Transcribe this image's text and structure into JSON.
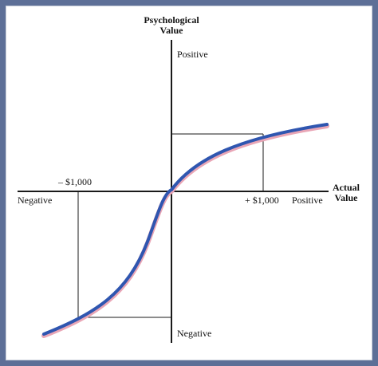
{
  "diagram": {
    "y_axis_title": [
      "Psychological",
      "Value"
    ],
    "x_axis_title": [
      "Actual",
      "Value"
    ],
    "y_positive_label": "Positive",
    "y_negative_label": "Negative",
    "x_positive_label": "Positive",
    "x_negative_label": "Negative",
    "x_pos_tick_label": "+ $1,000",
    "x_neg_tick_label": "– $1,000"
  },
  "colors": {
    "background": "#5d6f97",
    "panel": "#ffffff",
    "axis": "#1a1a1a",
    "curve": "#2f56b0",
    "curve_highlight": "#e9a6b6"
  }
}
